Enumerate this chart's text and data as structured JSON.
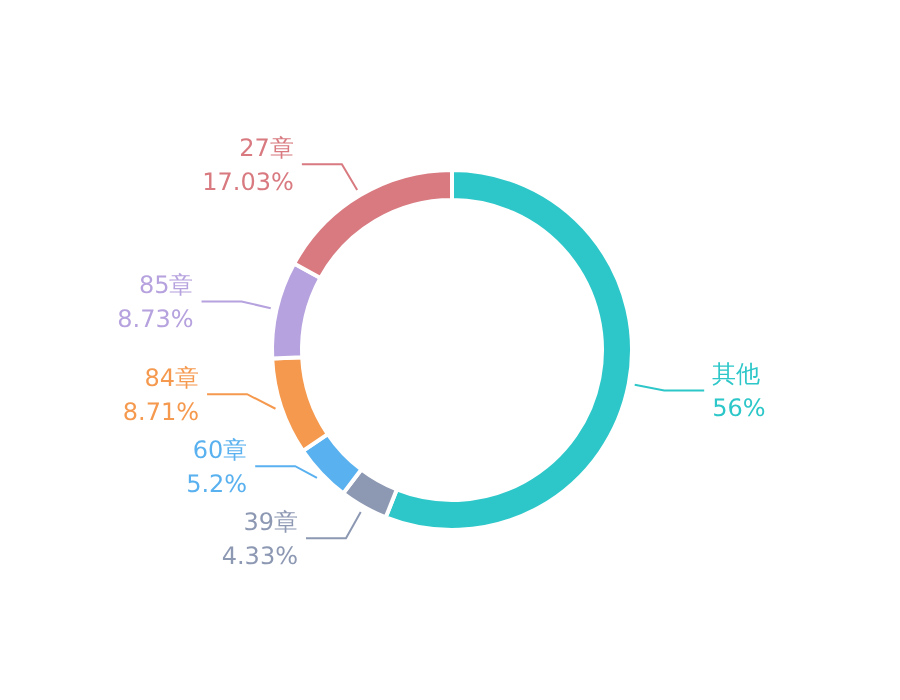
{
  "chart_data": {
    "type": "donut",
    "categories": [
      "其他",
      "39章",
      "60章",
      "84章",
      "85章",
      "27章"
    ],
    "values": [
      56,
      4.33,
      5.2,
      8.71,
      8.73,
      17.03
    ],
    "value_labels": [
      "56%",
      "4.33%",
      "5.2%",
      "8.71%",
      "8.73%",
      "17.03%"
    ],
    "colors": [
      "#2ec7c9",
      "#8d98b3",
      "#5ab1ef",
      "#f5994e",
      "#b6a2de",
      "#d87a80"
    ],
    "legend": false
  }
}
